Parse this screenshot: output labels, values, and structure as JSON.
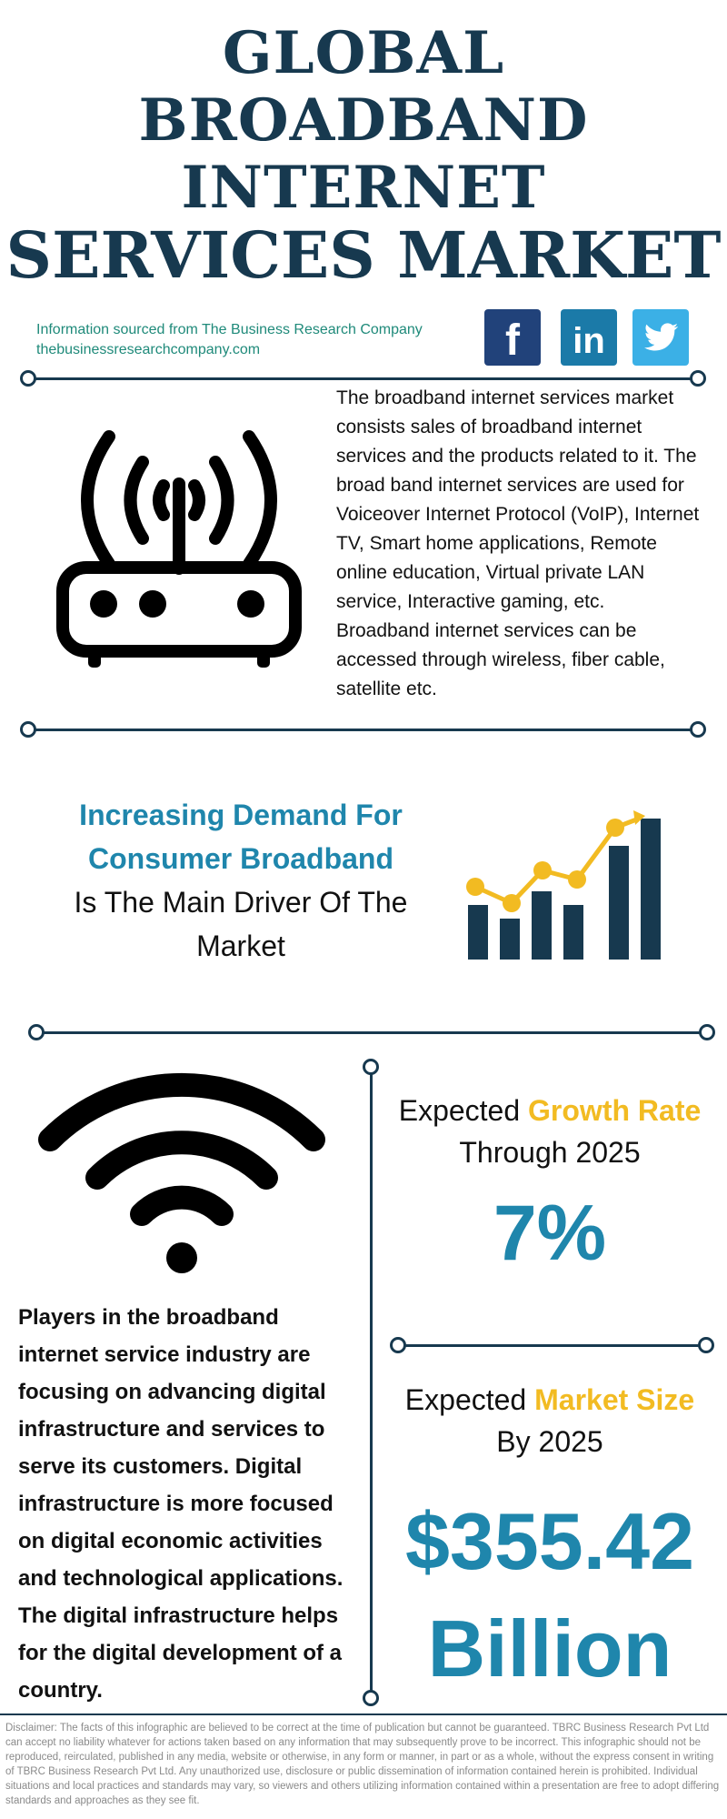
{
  "title": {
    "line1": "GLOBAL",
    "line2": "BROADBAND",
    "line3": "INTERNET",
    "line4": "SERVICES MARKET"
  },
  "source": {
    "line1": "Information sourced from The Business Research Company",
    "line2": "thebusinessresearchcompany.com"
  },
  "social": {
    "facebook_glyph": "f",
    "linkedin_glyph": "in",
    "twitter_icon": "twitter-bird-icon"
  },
  "description": "The broadband internet services market consists sales of broadband internet services and the products related to it. The broad band internet services are used for Voiceover Internet Protocol (VoIP), Internet TV, Smart home applications, Remote online education, Virtual private LAN service, Interactive gaming, etc. Broadband internet services can be accessed through wireless, fiber cable, satellite etc.",
  "driver": {
    "highlight": "Increasing Demand For Consumer Broadband",
    "text": "Is The Main Driver Of The Market"
  },
  "players": "Players in the broadband internet service industry are focusing on advancing digital infrastructure and services to serve its customers. Digital infrastructure is more focused on digital economic activities and technological applications. The digital infrastructure helps for the digital development of a country.",
  "growth": {
    "prefix": "Expected",
    "highlight": "Growth Rate",
    "suffix": "Through 2025",
    "value": "7%"
  },
  "market_size": {
    "prefix": "Expected",
    "highlight": "Market Size",
    "suffix": "By 2025",
    "value_line1": "$355.42",
    "value_line2": "Billion"
  },
  "disclaimer": "Disclaimer: The facts of this infographic are believed to be correct at the time of publication but cannot be guaranteed. TBRC Business Research Pvt Ltd can accept no liability whatever for actions taken based on any information that may subsequently prove to be incorrect. This infographic should not be reproduced, reirculated, published in any media, website or otherwise, in any form or manner, in part or as a whole, without the express consent in writing of TBRC Business Research Pvt Ltd. Any unauthorized use, disclosure or public dissemination of information contained herein is prohibited. Individual situations and local practices and standards may vary, so viewers and others utilizing information contained within a presentation are free to adopt differing standards and approaches as they see fit.",
  "colors": {
    "navy": "#17394f",
    "accent_blue": "#1f86ac",
    "yellow": "#f2bb22",
    "teal": "#1f8a7a",
    "facebook": "#21427a",
    "linkedin": "#1b7aa8",
    "twitter": "#3bb0e6"
  },
  "icons": [
    "router-icon",
    "growth-chart-icon",
    "wifi-icon"
  ]
}
